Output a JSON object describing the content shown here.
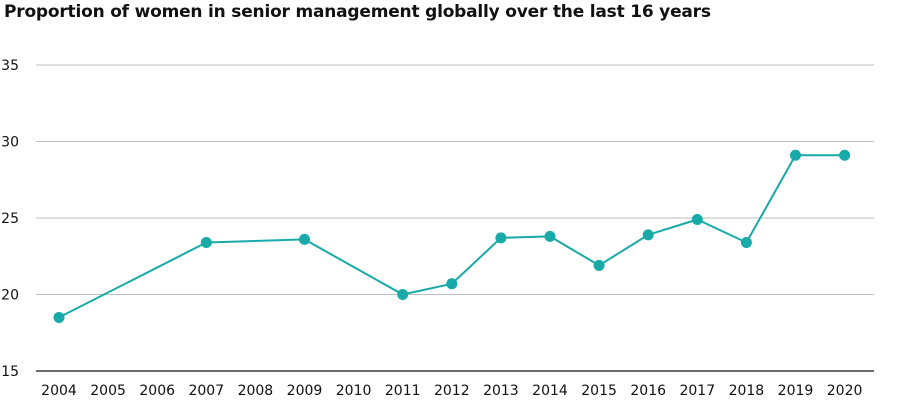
{
  "chart_data": {
    "type": "line",
    "title": "Proportion of women in senior management globally over the last 16 years",
    "xlabel": "",
    "ylabel": "",
    "categories": [
      "2004",
      "2005",
      "2006",
      "2007",
      "2008",
      "2009",
      "2010",
      "2011",
      "2012",
      "2013",
      "2014",
      "2015",
      "2016",
      "2017",
      "2018",
      "2019",
      "2020"
    ],
    "series": [
      {
        "values": [
          18.5,
          null,
          null,
          23.4,
          null,
          23.6,
          null,
          20,
          20.7,
          23.7,
          23.8,
          21.9,
          23.9,
          24.9,
          23.4,
          29.1,
          29.1
        ]
      }
    ],
    "ylim": [
      15,
      35
    ],
    "yticks": [
      15,
      20,
      25,
      30,
      35
    ],
    "grid": true,
    "colors": {
      "line": "#17aaa8",
      "grid": "#bfbfbf",
      "axis": "#111111"
    }
  }
}
